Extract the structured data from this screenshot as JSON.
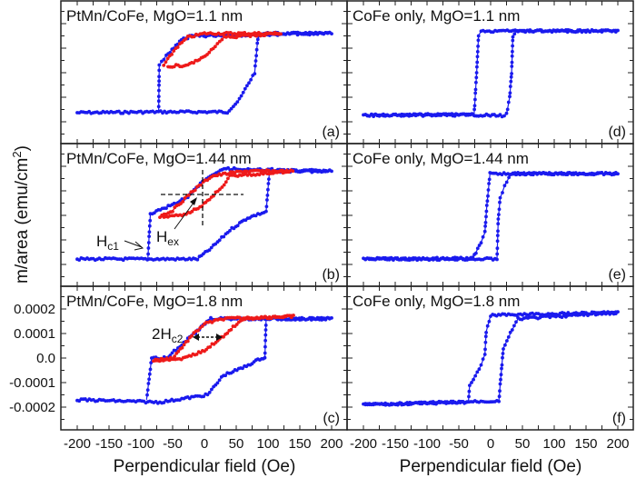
{
  "figure": {
    "ylabel": "m/area (emu/cm",
    "ylabel_sup": "2",
    "ylabel_close": ")",
    "xlabel": "Perpendicular field (Oe)",
    "colors": {
      "blue": "#1a1aee",
      "red": "#ee1a1a",
      "axis": "#222222"
    }
  },
  "annotations": {
    "hc1": "H",
    "hc1_sub": "c1",
    "hex": "H",
    "hex_sub": "ex",
    "hc2": "2H",
    "hc2_sub": "c2"
  },
  "chart_data": [
    {
      "type": "line",
      "panel": "(a)",
      "title": "PtMn/CoFe, MgO=1.1 nm",
      "xlim": [
        -200,
        200
      ],
      "ylim": [
        -0.00029,
        0.00029
      ],
      "xticks": [
        -200,
        -150,
        -100,
        -50,
        0,
        50,
        100,
        150,
        200
      ],
      "yticks": [],
      "grid": false,
      "series": [
        {
          "color": "blue",
          "branches": [
            [
              [
                -200,
                -0.000163
              ],
              [
                -75,
                -0.00016
              ],
              [
                -72,
                -0.00016
              ],
              [
                -44,
                -0.00016
              ],
              [
                36,
                -0.00016
              ],
              [
                55,
                -0.00011
              ],
              [
                70,
                -4e-05
              ],
              [
                79,
                0.0
              ],
              [
                84,
                0.00014
              ],
              [
                90,
                0.00016
              ],
              [
                200,
                0.00016
              ]
            ],
            [
              [
                200,
                0.00016
              ],
              [
                -20,
                0.00015
              ],
              [
                -36,
                0.000133
              ],
              [
                -60,
                7e-05
              ],
              [
                -71,
                3e-05
              ],
              [
                -72,
                -0.00016
              ]
            ]
          ]
        },
        {
          "color": "red",
          "branches": [
            [
              [
                -64,
                3e-05
              ],
              [
                -45,
                0.0001
              ],
              [
                -26,
                0.000144
              ],
              [
                0,
                0.00016
              ],
              [
                120,
                0.00016
              ]
            ],
            [
              [
                120,
                0.00016
              ],
              [
                31,
                0.000144
              ],
              [
                17,
                0.000107
              ],
              [
                -2,
                6e-05
              ],
              [
                -26,
                3e-05
              ],
              [
                -60,
                2.6e-05
              ]
            ]
          ]
        }
      ]
    },
    {
      "type": "line",
      "panel": "(b)",
      "title": "PtMn/CoFe, MgO=1.44 nm",
      "xlim": [
        -200,
        200
      ],
      "ylim": [
        -0.00029,
        0.00029
      ],
      "xticks": [
        -200,
        -150,
        -100,
        -50,
        0,
        50,
        100,
        150,
        200
      ],
      "yticks": [],
      "grid": false,
      "series": [
        {
          "color": "blue",
          "branches": [
            [
              [
                -200,
                -0.000178
              ],
              [
                -11,
                -0.000178
              ],
              [
                11,
                -0.000133
              ],
              [
                40,
                -6e-05
              ],
              [
                68,
                -1e-05
              ],
              [
                97,
                1.5e-05
              ],
              [
                102,
                0.00017
              ],
              [
                110,
                0.00018
              ],
              [
                200,
                0.00018
              ]
            ],
            [
              [
                200,
                0.00018
              ],
              [
                31,
                0.00019
              ],
              [
                -3,
                0.000137
              ],
              [
                -26,
                7.4e-05
              ],
              [
                -60,
                3.3e-05
              ],
              [
                -85,
                4e-06
              ],
              [
                -89,
                -0.000178
              ]
            ]
          ]
        },
        {
          "color": "red",
          "branches": [
            [
              [
                -70,
                -4e-06
              ],
              [
                -50,
                2e-05
              ],
              [
                -21,
                9.3e-05
              ],
              [
                11,
                0.00016
              ],
              [
                60,
                0.00018
              ],
              [
                139,
                0.00018
              ]
            ],
            [
              [
                139,
                0.00018
              ],
              [
                40,
                0.00016
              ],
              [
                31,
                0.000126
              ],
              [
                11,
                7.4e-05
              ],
              [
                -7,
                3.3e-05
              ],
              [
                -35,
                0.0
              ],
              [
                -70,
                -4e-06
              ]
            ]
          ]
        }
      ]
    },
    {
      "type": "line",
      "panel": "(c)",
      "title": "PtMn/CoFe, MgO=1.8 nm",
      "xlim": [
        -200,
        200
      ],
      "ylim": [
        -0.00029,
        0.00029
      ],
      "xticks": [
        -200,
        -150,
        -100,
        -50,
        0,
        50,
        100,
        150,
        200
      ],
      "yticks": [
        0.0002,
        0.0001,
        0.0,
        -0.0001,
        -0.0002
      ],
      "ytick_labels": [
        "0.0002",
        "0.0001",
        "0.0",
        "-0.0001",
        "-0.0002"
      ],
      "xtick_labels": [
        "-200",
        "-150",
        "-100",
        "-50",
        "0",
        "50",
        "100",
        "150",
        "200"
      ],
      "grid": false,
      "series": [
        {
          "color": "blue",
          "branches": [
            [
              [
                -200,
                -0.00017
              ],
              [
                -70,
                -0.00018
              ],
              [
                5,
                -0.00015
              ],
              [
                30,
                -7e-05
              ],
              [
                60,
                -4e-05
              ],
              [
                90,
                0.0
              ],
              [
                95,
                0.0
              ],
              [
                97,
                0.00016
              ],
              [
                200,
                0.00016
              ]
            ],
            [
              [
                200,
                0.00016
              ],
              [
                10,
                0.00016
              ],
              [
                -20,
                9e-05
              ],
              [
                -60,
                0.0
              ],
              [
                -83,
                0.0
              ],
              [
                -91,
                -0.00017
              ]
            ]
          ]
        },
        {
          "color": "red",
          "branches": [
            [
              [
                -80,
                -1e-05
              ],
              [
                -50,
                0.0
              ],
              [
                -20,
                9e-05
              ],
              [
                0,
                0.00014
              ],
              [
                30,
                0.00016
              ],
              [
                140,
                0.00017
              ]
            ],
            [
              [
                140,
                0.00017
              ],
              [
                60,
                0.00016
              ],
              [
                30,
                9e-05
              ],
              [
                0,
                3e-05
              ],
              [
                -30,
                0.0
              ],
              [
                -80,
                -1e-05
              ]
            ]
          ]
        }
      ]
    },
    {
      "type": "line",
      "panel": "(d)",
      "title": "CoFe only, MgO=1.1 nm",
      "xlim": [
        -200,
        200
      ],
      "ylim": [
        -0.00029,
        0.00029
      ],
      "xticks": [
        -200,
        -150,
        -100,
        -50,
        0,
        50,
        100,
        150,
        200
      ],
      "yticks": [],
      "grid": false,
      "series": [
        {
          "color": "blue",
          "branches": [
            [
              [
                -200,
                -0.000174
              ],
              [
                -25,
                -0.000172
              ],
              [
                18,
                -0.000175
              ],
              [
                25,
                -0.00017
              ],
              [
                30,
                -0.0001
              ],
              [
                33,
                0.0
              ],
              [
                35,
                0.00015
              ],
              [
                40,
                0.00017
              ],
              [
                200,
                0.00017
              ]
            ],
            [
              [
                200,
                0.00017
              ],
              [
                -15,
                0.00017
              ],
              [
                -19,
                0.00015
              ],
              [
                -22,
                0.0
              ],
              [
                -25,
                -0.00013
              ],
              [
                -26,
                -0.00017
              ],
              [
                -200,
                -0.000174
              ]
            ]
          ]
        }
      ]
    },
    {
      "type": "line",
      "panel": "(e)",
      "title": "CoFe only, MgO=1.44 nm",
      "xlim": [
        -200,
        200
      ],
      "ylim": [
        -0.00029,
        0.00029
      ],
      "xticks": [
        -200,
        -150,
        -100,
        -50,
        0,
        50,
        100,
        150,
        200
      ],
      "yticks": [],
      "grid": false,
      "series": [
        {
          "color": "blue",
          "branches": [
            [
              [
                -200,
                -0.000178
              ],
              [
                10,
                -0.000178
              ],
              [
                12,
                -1.5e-05
              ],
              [
                15,
                7e-05
              ],
              [
                22,
                0.00012
              ],
              [
                32,
                0.00017
              ],
              [
                200,
                0.00017
              ]
            ],
            [
              [
                200,
                0.00017
              ],
              [
                -1,
                0.00017
              ],
              [
                -6,
                4e-05
              ],
              [
                -9,
                -7e-05
              ],
              [
                -15,
                -0.00011
              ],
              [
                -23,
                -0.00015
              ],
              [
                -28,
                -0.000175
              ],
              [
                -200,
                -0.000178
              ]
            ]
          ]
        }
      ]
    },
    {
      "type": "line",
      "panel": "(f)",
      "title": "CoFe only, MgO=1.8 nm",
      "xlim": [
        -200,
        200
      ],
      "ylim": [
        -0.00029,
        0.00029
      ],
      "xticks": [
        -200,
        -150,
        -100,
        -50,
        0,
        50,
        100,
        150,
        200
      ],
      "xtick_labels": [
        "-200",
        "-150",
        "-100",
        "-50",
        "0",
        "50",
        "100",
        "150",
        "200"
      ],
      "yticks": [],
      "grid": false,
      "series": [
        {
          "color": "blue",
          "branches": [
            [
              [
                -200,
                -0.00019
              ],
              [
                13,
                -0.000175
              ],
              [
                15,
                -0.00011
              ],
              [
                20,
                4e-05
              ],
              [
                31,
                0.0001
              ],
              [
                43,
                0.00016
              ],
              [
                200,
                0.000185
              ]
            ],
            [
              [
                200,
                0.000185
              ],
              [
                0,
                0.000175
              ],
              [
                -7,
                0.000107
              ],
              [
                -9,
                1.5e-05
              ],
              [
                -15,
                -3e-05
              ],
              [
                -33,
                -0.00011
              ],
              [
                -35,
                -0.00018
              ],
              [
                -200,
                -0.00019
              ]
            ]
          ]
        }
      ]
    }
  ]
}
